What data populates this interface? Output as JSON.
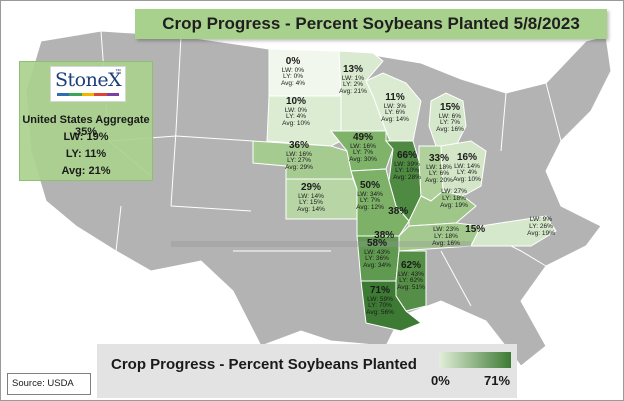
{
  "title": "Crop Progress - Percent Soybeans Planted 5/8/2023",
  "logo": {
    "text": "StoneX",
    "bar_colors": [
      "#2e6db4",
      "#3aa757",
      "#f4b400",
      "#db4437",
      "#7a3fa0"
    ]
  },
  "aggregate": {
    "heading": "United States Aggregate 35%",
    "lw": "LW: 19%",
    "ly": "LY: 11%",
    "avg": "Avg: 21%"
  },
  "bottom": {
    "title": "Crop Progress - Percent Soybeans Planted",
    "legend_min": "0%",
    "legend_max": "71%"
  },
  "source": "Source: USDA",
  "colors": {
    "base_state": "#b3b3b3",
    "state_border": "#ffffff",
    "title_bg": "#a9d18e",
    "legend_low": "#e2efd9",
    "legend_high": "#3d7a34"
  },
  "states": [
    {
      "name": "North Dakota",
      "pct": "0%",
      "lw": "LW: 0%",
      "ly": "LY: 0%",
      "avg": "Avg: 4%",
      "value": 0
    },
    {
      "name": "Minnesota",
      "pct": "13%",
      "lw": "LW: 1%",
      "ly": "LY: 2%",
      "avg": "Avg: 21%",
      "value": 13
    },
    {
      "name": "Wisconsin",
      "pct": "11%",
      "lw": "LW: 3%",
      "ly": "LY: 6%",
      "avg": "Avg: 14%",
      "value": 11
    },
    {
      "name": "Michigan",
      "pct": "15%",
      "lw": "LW: 6%",
      "ly": "LY: 7%",
      "avg": "Avg: 16%",
      "value": 15
    },
    {
      "name": "South Dakota",
      "pct": "10%",
      "lw": "LW: 0%",
      "ly": "LY: 4%",
      "avg": "Avg: 10%",
      "value": 10
    },
    {
      "name": "Iowa",
      "pct": "49%",
      "lw": "LW: 16%",
      "ly": "LY: 7%",
      "avg": "Avg: 30%",
      "value": 49
    },
    {
      "name": "Nebraska",
      "pct": "36%",
      "lw": "LW: 16%",
      "ly": "LY: 27%",
      "avg": "Avg: 29%",
      "value": 36
    },
    {
      "name": "Illinois",
      "pct": "66%",
      "lw": "LW: 39%",
      "ly": "LY: 10%",
      "avg": "Avg: 28%",
      "value": 66
    },
    {
      "name": "Indiana",
      "pct": "33%",
      "lw": "LW: 18%",
      "ly": "LY: 6%",
      "avg": "Avg: 20%",
      "value": 33
    },
    {
      "name": "Ohio",
      "pct": "16%",
      "lw": "LW: 14%",
      "ly": "LY: 4%",
      "avg": "Avg: 10%",
      "value": 16
    },
    {
      "name": "Kansas",
      "pct": "29%",
      "lw": "LW: 14%",
      "ly": "LY: 15%",
      "avg": "Avg: 14%",
      "value": 29
    },
    {
      "name": "Missouri",
      "pct": "50%",
      "lw": "LW: 34%",
      "ly": "LY: 7%",
      "avg": "Avg: 12%",
      "value": 50
    },
    {
      "name": "Kentucky",
      "pct": "38%",
      "lw": "LW: 27%",
      "ly": "LY: 18%",
      "avg": "Avg: 19%",
      "value": 38
    },
    {
      "name": "Tennessee",
      "pct": "38%",
      "lw": "LW: 23%",
      "ly": "LY: 18%",
      "avg": "Avg: 16%",
      "value": 38
    },
    {
      "name": "North Carolina",
      "pct": "15%",
      "lw": "LW: 9%",
      "ly": "LY: 26%",
      "avg": "Avg: 19%",
      "value": 15
    },
    {
      "name": "Arkansas",
      "pct": "58%",
      "lw": "LW: 43%",
      "ly": "LY: 36%",
      "avg": "Avg: 34%",
      "value": 58
    },
    {
      "name": "Mississippi",
      "pct": "62%",
      "lw": "LW: 43%",
      "ly": "LY: 62%",
      "avg": "Avg: 51%",
      "value": 62
    },
    {
      "name": "Louisiana",
      "pct": "71%",
      "lw": "LW: 59%",
      "ly": "LY: 70%",
      "avg": "Avg: 56%",
      "value": 71
    }
  ]
}
